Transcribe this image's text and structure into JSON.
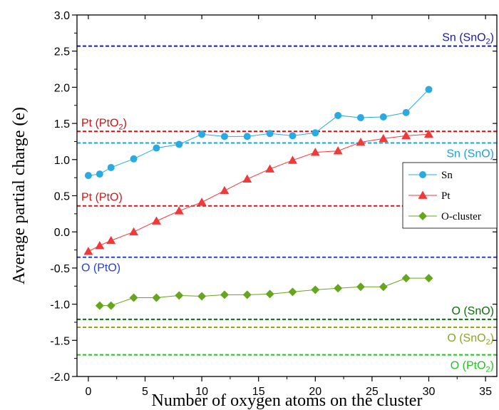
{
  "chart_data": {
    "type": "line",
    "xlabel": "Number of oxygen atoms on the cluster",
    "ylabel": "Average partial charge (e)",
    "xlim": [
      -1,
      36
    ],
    "ylim": [
      -2.0,
      3.0
    ],
    "xticks": [
      0,
      5,
      10,
      15,
      20,
      25,
      30,
      35
    ],
    "yticks": [
      -2.0,
      -1.5,
      -1.0,
      -0.5,
      0.0,
      0.5,
      1.0,
      1.5,
      2.0,
      2.5,
      3.0
    ],
    "ytick_labels": [
      "-2.0",
      "-1.5",
      "-1.0",
      "-0.5",
      "0.0",
      "0.5",
      "1.0",
      "1.5",
      "2.0",
      "2.5",
      "3.0"
    ],
    "legend_position": "right",
    "series": [
      {
        "name": "Sn",
        "marker": "circle",
        "color": "#29abe2",
        "x": [
          0,
          1,
          2,
          4,
          6,
          8,
          10,
          12,
          14,
          16,
          18,
          20,
          22,
          24,
          26,
          28,
          30
        ],
        "y": [
          0.78,
          0.8,
          0.89,
          1.01,
          1.16,
          1.21,
          1.35,
          1.32,
          1.32,
          1.36,
          1.33,
          1.37,
          1.61,
          1.58,
          1.59,
          1.65,
          1.97
        ]
      },
      {
        "name": "Pt",
        "marker": "triangle",
        "color": "#f03a3a",
        "x": [
          0,
          1,
          2,
          4,
          6,
          8,
          10,
          12,
          14,
          16,
          18,
          20,
          22,
          24,
          26,
          28,
          30
        ],
        "y": [
          -0.27,
          -0.19,
          -0.12,
          0.0,
          0.15,
          0.29,
          0.41,
          0.57,
          0.73,
          0.87,
          0.99,
          1.1,
          1.12,
          1.24,
          1.29,
          1.33,
          1.35
        ]
      },
      {
        "name": "O-cluster",
        "marker": "diamond",
        "color": "#66a61e",
        "x": [
          1,
          2,
          4,
          6,
          8,
          10,
          12,
          14,
          16,
          18,
          20,
          22,
          24,
          26,
          28,
          30
        ],
        "y": [
          -1.02,
          -1.02,
          -0.91,
          -0.91,
          -0.88,
          -0.89,
          -0.87,
          -0.87,
          -0.86,
          -0.83,
          -0.8,
          -0.78,
          -0.76,
          -0.76,
          -0.64,
          -0.64
        ]
      }
    ],
    "reference_lines": [
      {
        "label": "Sn (SnO",
        "sub": "2",
        "tail": ")",
        "y": 2.57,
        "color": "#1a1aa8",
        "label_anchor": "right",
        "label_side": "above"
      },
      {
        "label": "Pt (PtO",
        "sub": "2",
        "tail": ")",
        "y": 1.39,
        "color": "#c81414",
        "label_anchor": "left",
        "label_side": "above"
      },
      {
        "label": "Sn (SnO)",
        "sub": "",
        "tail": "",
        "y": 1.23,
        "color": "#1e9fe0",
        "label_anchor": "right",
        "label_side": "below"
      },
      {
        "label": "Pt (PtO)",
        "sub": "",
        "tail": "",
        "y": 0.36,
        "color": "#d01818",
        "label_anchor": "left",
        "label_side": "above"
      },
      {
        "label": "O (PtO)",
        "sub": "",
        "tail": "",
        "y": -0.35,
        "color": "#2a3fd6",
        "label_anchor": "left",
        "label_side": "below"
      },
      {
        "label": "O (SnO)",
        "sub": "",
        "tail": "",
        "y": -1.21,
        "color": "#0a6e0a",
        "label_anchor": "right",
        "label_side": "above"
      },
      {
        "label": "O (SnO",
        "sub": "2",
        "tail": ")",
        "y": -1.32,
        "color": "#8aa624",
        "label_anchor": "right",
        "label_side": "below"
      },
      {
        "label": "O (PtO",
        "sub": "2",
        "tail": ")",
        "y": -1.7,
        "color": "#22c322",
        "label_anchor": "right",
        "label_side": "below"
      }
    ]
  }
}
